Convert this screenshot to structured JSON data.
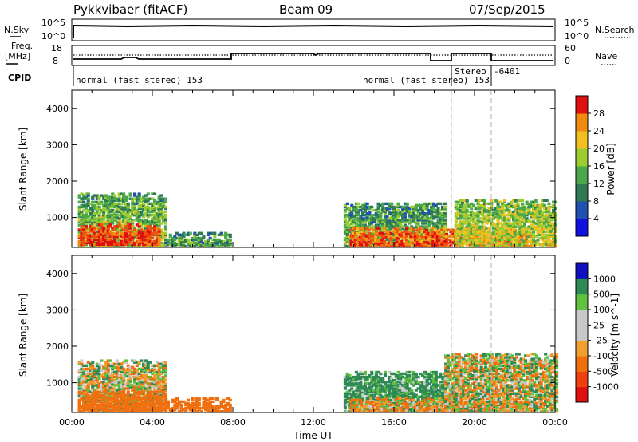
{
  "header": {
    "station": "Pykkvibaer (fitACF)",
    "beam": "Beam 09",
    "date": "07/Sep/2015"
  },
  "ancillary": {
    "nsky_label": "N.Sky",
    "nsearch_label": "N.Search",
    "freq_label_1": "Freq.",
    "freq_label_2": "[MHz]",
    "nave_label": "Nave",
    "cpid_label": "CPID",
    "noise_left_ticks": [
      "10^5",
      "10^0"
    ],
    "noise_right_ticks": [
      "10^5",
      "10^0"
    ],
    "freq_ticks": [
      "18",
      "8"
    ],
    "nave_ticks": [
      "60",
      "0"
    ],
    "cpid_labels": [
      "normal (fast stereo) 153",
      "normal (fast stereo) 153",
      "Stereo",
      "-6401"
    ]
  },
  "colors": {
    "power_scale": [
      "#1010e0",
      "#2050b0",
      "#2f7a55",
      "#4aa84a",
      "#9ccc30",
      "#f0c020",
      "#f08a10",
      "#f05010",
      "#e01010"
    ],
    "velocity_scale": [
      "#e01010",
      "#f04010",
      "#f07010",
      "#f0a030",
      "#f0d070",
      "#c8c8c8",
      "#c8c8c8",
      "#60c040",
      "#2f8a55",
      "#2050b0",
      "#1010c0"
    ]
  },
  "chart_data": [
    {
      "type": "heatmap",
      "title": "Power",
      "ylabel": "Slant Range [km]",
      "colorbar_label": "Power [dB]",
      "colorbar_ticks": [
        "28",
        "24",
        "20",
        "16",
        "12",
        "8",
        "4"
      ],
      "ylim": [
        180,
        4500
      ],
      "yticks": [
        "4000",
        "3000",
        "2000",
        "1000"
      ],
      "xticks": [
        "00:00",
        "04:00",
        "08:00",
        "12:00",
        "16:00",
        "20:00",
        "00:00"
      ],
      "regions": [
        {
          "t0": 0.3,
          "t1": 4.6,
          "r0": 200,
          "r1": 1650,
          "power": 14
        },
        {
          "t0": 0.3,
          "t1": 4.3,
          "r0": 250,
          "r1": 800,
          "power": 26
        },
        {
          "t0": 4.6,
          "t1": 7.8,
          "r0": 200,
          "r1": 600,
          "power": 10
        },
        {
          "t0": 13.5,
          "t1": 18.5,
          "r0": 200,
          "r1": 1400,
          "power": 12
        },
        {
          "t0": 13.8,
          "t1": 22.5,
          "r0": 200,
          "r1": 700,
          "power": 24
        },
        {
          "t0": 19.0,
          "t1": 24.0,
          "r0": 200,
          "r1": 1500,
          "power": 16
        }
      ]
    },
    {
      "type": "heatmap",
      "title": "Velocity",
      "ylabel": "Slant Range [km]",
      "xlabel": "Time UT",
      "colorbar_label": "Velocity [m s^-1]",
      "colorbar_ticks": [
        "1000",
        "500",
        "100",
        "25",
        "-25",
        "-100",
        "-500",
        "-1000"
      ],
      "ylim": [
        180,
        4500
      ],
      "yticks": [
        "4000",
        "3000",
        "2000",
        "1000"
      ],
      "xticks": [
        "00:00",
        "04:00",
        "08:00",
        "12:00",
        "16:00",
        "20:00",
        "00:00"
      ],
      "regions": [
        {
          "t0": 0.3,
          "t1": 4.6,
          "r0": 200,
          "r1": 1600,
          "velocity": 0
        },
        {
          "t0": 0.3,
          "t1": 4.6,
          "r0": 200,
          "r1": 750,
          "velocity": -300
        },
        {
          "t0": 4.6,
          "t1": 7.8,
          "r0": 200,
          "r1": 600,
          "velocity": -300
        },
        {
          "t0": 13.5,
          "t1": 18.5,
          "r0": 200,
          "r1": 1300,
          "velocity": 200
        },
        {
          "t0": 13.8,
          "t1": 22.5,
          "r0": 200,
          "r1": 600,
          "velocity": -80
        },
        {
          "t0": 18.5,
          "t1": 24.0,
          "r0": 200,
          "r1": 1800,
          "velocity": 0
        }
      ]
    }
  ]
}
